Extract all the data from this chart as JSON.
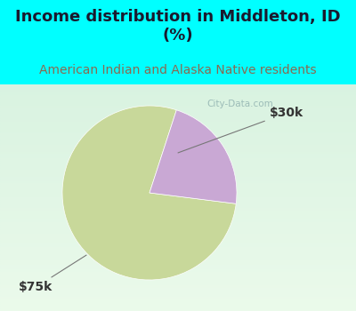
{
  "title": "Income distribution in Middleton, ID\n(%)",
  "subtitle": "American Indian and Alaska Native residents",
  "slices": [
    78.0,
    22.0
  ],
  "labels": [
    "$75k",
    "$30k"
  ],
  "colors": [
    "#c8d89a",
    "#c9a8d4"
  ],
  "bg_top": "#00ffff",
  "title_color": "#1a1a2e",
  "subtitle_color": "#8b6a50",
  "label_color": "#333333",
  "watermark": "City-Data.com",
  "label_fontsize": 10,
  "title_fontsize": 13,
  "subtitle_fontsize": 10,
  "start_angle": 72
}
